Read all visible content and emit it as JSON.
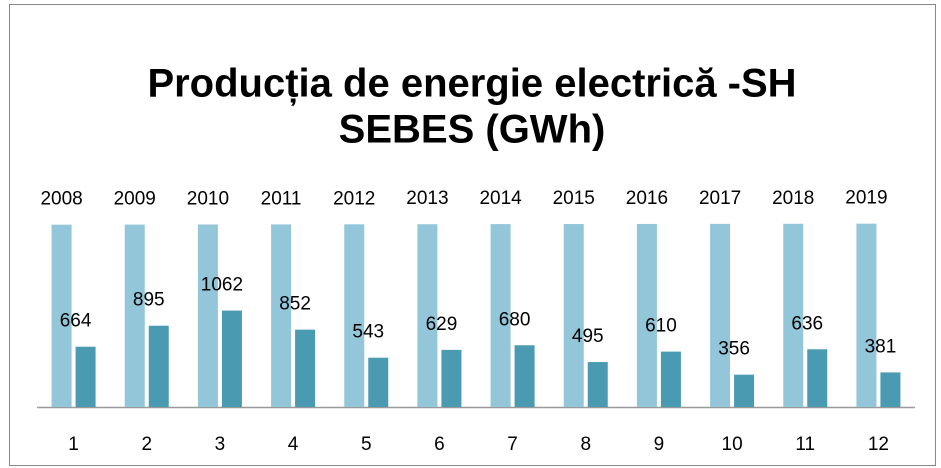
{
  "chart_data": {
    "type": "bar",
    "title": [
      "Producția  de energie electrică -SH",
      "SEBES (GWh)"
    ],
    "categories": [
      "1",
      "2",
      "3",
      "4",
      "5",
      "6",
      "7",
      "8",
      "9",
      "10",
      "11",
      "12"
    ],
    "series": [
      {
        "color": "#93c6d8",
        "values": [
          2008,
          2009,
          2010,
          2011,
          2012,
          2013,
          2014,
          2015,
          2016,
          2017,
          2018,
          2019
        ]
      },
      {
        "color": "#4a9bb1",
        "values": [
          664,
          895,
          1062,
          852,
          543,
          629,
          680,
          495,
          610,
          356,
          636,
          381
        ]
      }
    ],
    "ylim": [
      0,
      2500
    ]
  }
}
